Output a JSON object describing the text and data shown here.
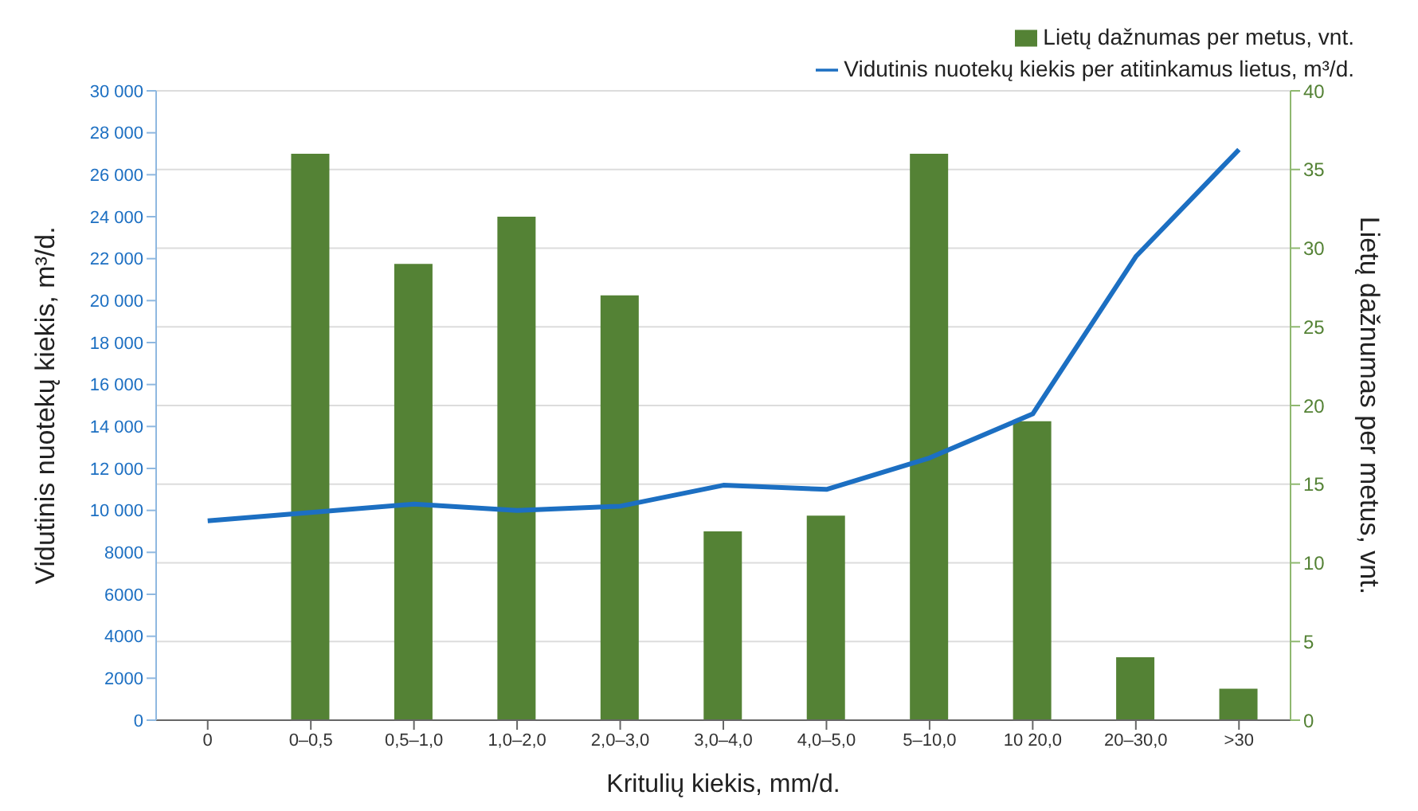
{
  "chart_data": {
    "type": "bar",
    "xlabel": "Kritulių kiekis, mm/d.",
    "ylabel": "Vidutinis nuotekų kiekis, m³/d.",
    "y2label": "Lietų dažnumas per metus, vnt.",
    "categories": [
      "0",
      "0–0,5",
      "0,5–1,0",
      "1,0–2,0",
      "2,0–3,0",
      "3,0–4,0",
      "4,0–5,0",
      "5–10,0",
      "10 20,0",
      "20–30,0",
      ">30"
    ],
    "series": [
      {
        "name": "Lietų dažnumas per metus, vnt.",
        "axis": "y2",
        "color": "#548235",
        "values": [
          0,
          36,
          29,
          32,
          27,
          12,
          13,
          36,
          19,
          4,
          2
        ]
      },
      {
        "name": "Vidutinis nuotekų kiekis per atitinkamus lietus, m³/d.",
        "type": "line",
        "axis": "y",
        "color": "#1c6fc2",
        "values": [
          9500,
          9900,
          10300,
          10000,
          10200,
          11200,
          11000,
          12500,
          14600,
          22100,
          27200
        ]
      }
    ],
    "ylim": [
      0,
      30000
    ],
    "yticks": [
      0,
      2000,
      4000,
      6000,
      8000,
      {
        "value": 10000,
        "label": "10 000"
      },
      {
        "value": 12000,
        "label": "12 000"
      },
      {
        "value": 14000,
        "label": "14 000"
      },
      {
        "value": 16000,
        "label": "16 000"
      },
      {
        "value": 18000,
        "label": "18 000"
      },
      {
        "value": 20000,
        "label": "20 000"
      },
      {
        "value": 22000,
        "label": "22 000"
      },
      {
        "value": 24000,
        "label": "24 000"
      },
      {
        "value": 26000,
        "label": "26 000"
      },
      {
        "value": 28000,
        "label": "28 000"
      },
      {
        "value": 30000,
        "label": "30 000"
      }
    ],
    "y2lim": [
      0,
      40
    ],
    "y2ticks": [
      0,
      5,
      10,
      15,
      20,
      25,
      30,
      35,
      40
    ],
    "grid": "y2",
    "legend": "top right",
    "marker": "none"
  }
}
